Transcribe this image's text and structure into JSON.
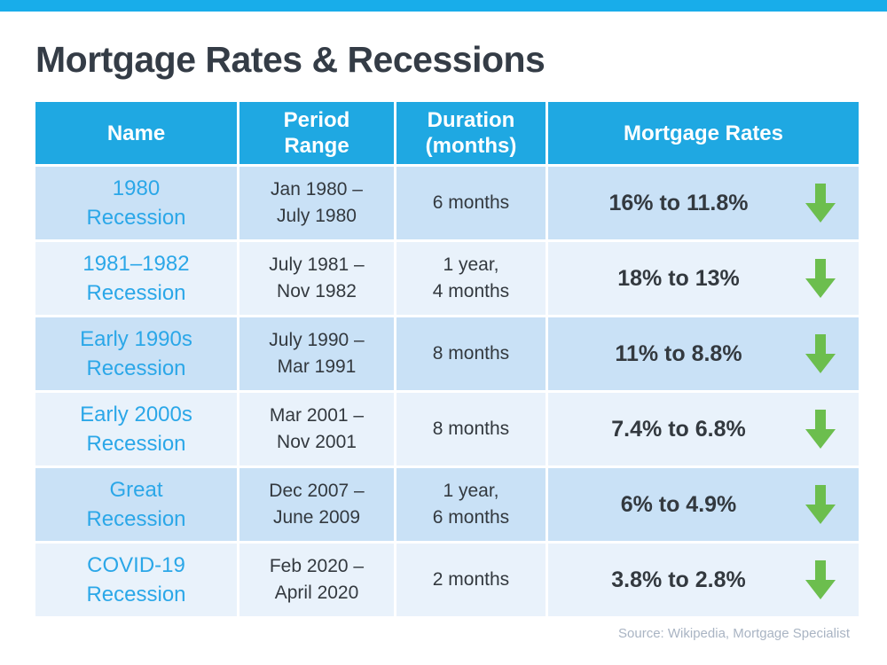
{
  "page": {
    "title": "Mortgage Rates & Recessions",
    "source_note": "Source: Wikipedia, Mortgage Specialist"
  },
  "colors": {
    "top_bar": "#18ADEA",
    "header_blue": "#1FA8E2",
    "row_blue": "#C9E1F6",
    "row_blue_light": "#E9F2FB",
    "name_cyan": "#2BA7E8",
    "title_dark": "#343C46",
    "text_dark": "#33393F",
    "arrow_green": "#6CBE4E",
    "source_gray": "#A9B4C3"
  },
  "table": {
    "headers": [
      {
        "id": "name",
        "lines": [
          "Name"
        ]
      },
      {
        "id": "period-range",
        "lines": [
          "Period",
          "Range"
        ]
      },
      {
        "id": "duration",
        "lines": [
          "Duration",
          "(months)"
        ]
      },
      {
        "id": "mortgage-rates",
        "lines": [
          "Mortgage Rates"
        ]
      }
    ],
    "rows": [
      {
        "name": [
          "1980",
          "Recession"
        ],
        "period": [
          "Jan 1980 –",
          "July 1980"
        ],
        "duration": [
          "6 months"
        ],
        "rate": "16% to 11.8%",
        "trend": "down-arrow"
      },
      {
        "name": [
          "1981–1982",
          "Recession"
        ],
        "period": [
          "July 1981 –",
          "Nov 1982"
        ],
        "duration": [
          "1 year,",
          "4 months"
        ],
        "rate": "18% to 13%",
        "trend": "down-arrow"
      },
      {
        "name": [
          "Early 1990s",
          "Recession"
        ],
        "period": [
          "July 1990 –",
          "Mar 1991"
        ],
        "duration": [
          "8 months"
        ],
        "rate": "11% to 8.8%",
        "trend": "down-arrow"
      },
      {
        "name": [
          "Early 2000s",
          "Recession"
        ],
        "period": [
          "Mar 2001 –",
          "Nov 2001"
        ],
        "duration": [
          "8 months"
        ],
        "rate": "7.4% to 6.8%",
        "trend": "down-arrow"
      },
      {
        "name": [
          "Great",
          "Recession"
        ],
        "period": [
          "Dec 2007 –",
          "June 2009"
        ],
        "duration": [
          "1 year,",
          "6 months"
        ],
        "rate": "6% to 4.9%",
        "trend": "down-arrow"
      },
      {
        "name": [
          "COVID-19",
          "Recession"
        ],
        "period": [
          "Feb 2020 –",
          "April 2020"
        ],
        "duration": [
          "2 months"
        ],
        "rate": "3.8% to 2.8%",
        "trend": "down-arrow"
      }
    ]
  },
  "chart_data": {
    "type": "table",
    "title": "Mortgage Rates & Recessions",
    "columns": [
      "Name",
      "Period Range",
      "Duration (months)",
      "Mortgage Rates"
    ],
    "rows": [
      [
        "1980 Recession",
        "Jan 1980 – July 1980",
        "6 months",
        "16% to 11.8% (down)"
      ],
      [
        "1981–1982 Recession",
        "July 1981 – Nov 1982",
        "1 year, 4 months",
        "18% to 13% (down)"
      ],
      [
        "Early 1990s Recession",
        "July 1990 – Mar 1991",
        "8 months",
        "11% to 8.8% (down)"
      ],
      [
        "Early 2000s Recession",
        "Mar 2001 – Nov 2001",
        "8 months",
        "7.4% to 6.8% (down)"
      ],
      [
        "Great Recession",
        "Dec 2007 – June 2009",
        "1 year, 6 months",
        "6% to 4.9% (down)"
      ],
      [
        "COVID-19 Recession",
        "Feb 2020 – April 2020",
        "2 months",
        "3.8% to 2.8% (down)"
      ]
    ],
    "rates_numeric": [
      {
        "name": "1980 Recession",
        "rate_start_pct": 16.0,
        "rate_end_pct": 11.8
      },
      {
        "name": "1981–1982 Recession",
        "rate_start_pct": 18.0,
        "rate_end_pct": 13.0
      },
      {
        "name": "Early 1990s Recession",
        "rate_start_pct": 11.0,
        "rate_end_pct": 8.8
      },
      {
        "name": "Early 2000s Recession",
        "rate_start_pct": 7.4,
        "rate_end_pct": 6.8
      },
      {
        "name": "Great Recession",
        "rate_start_pct": 6.0,
        "rate_end_pct": 4.9
      },
      {
        "name": "COVID-19 Recession",
        "rate_start_pct": 3.8,
        "rate_end_pct": 2.8
      }
    ],
    "source": "Source: Wikipedia, Mortgage Specialist"
  }
}
